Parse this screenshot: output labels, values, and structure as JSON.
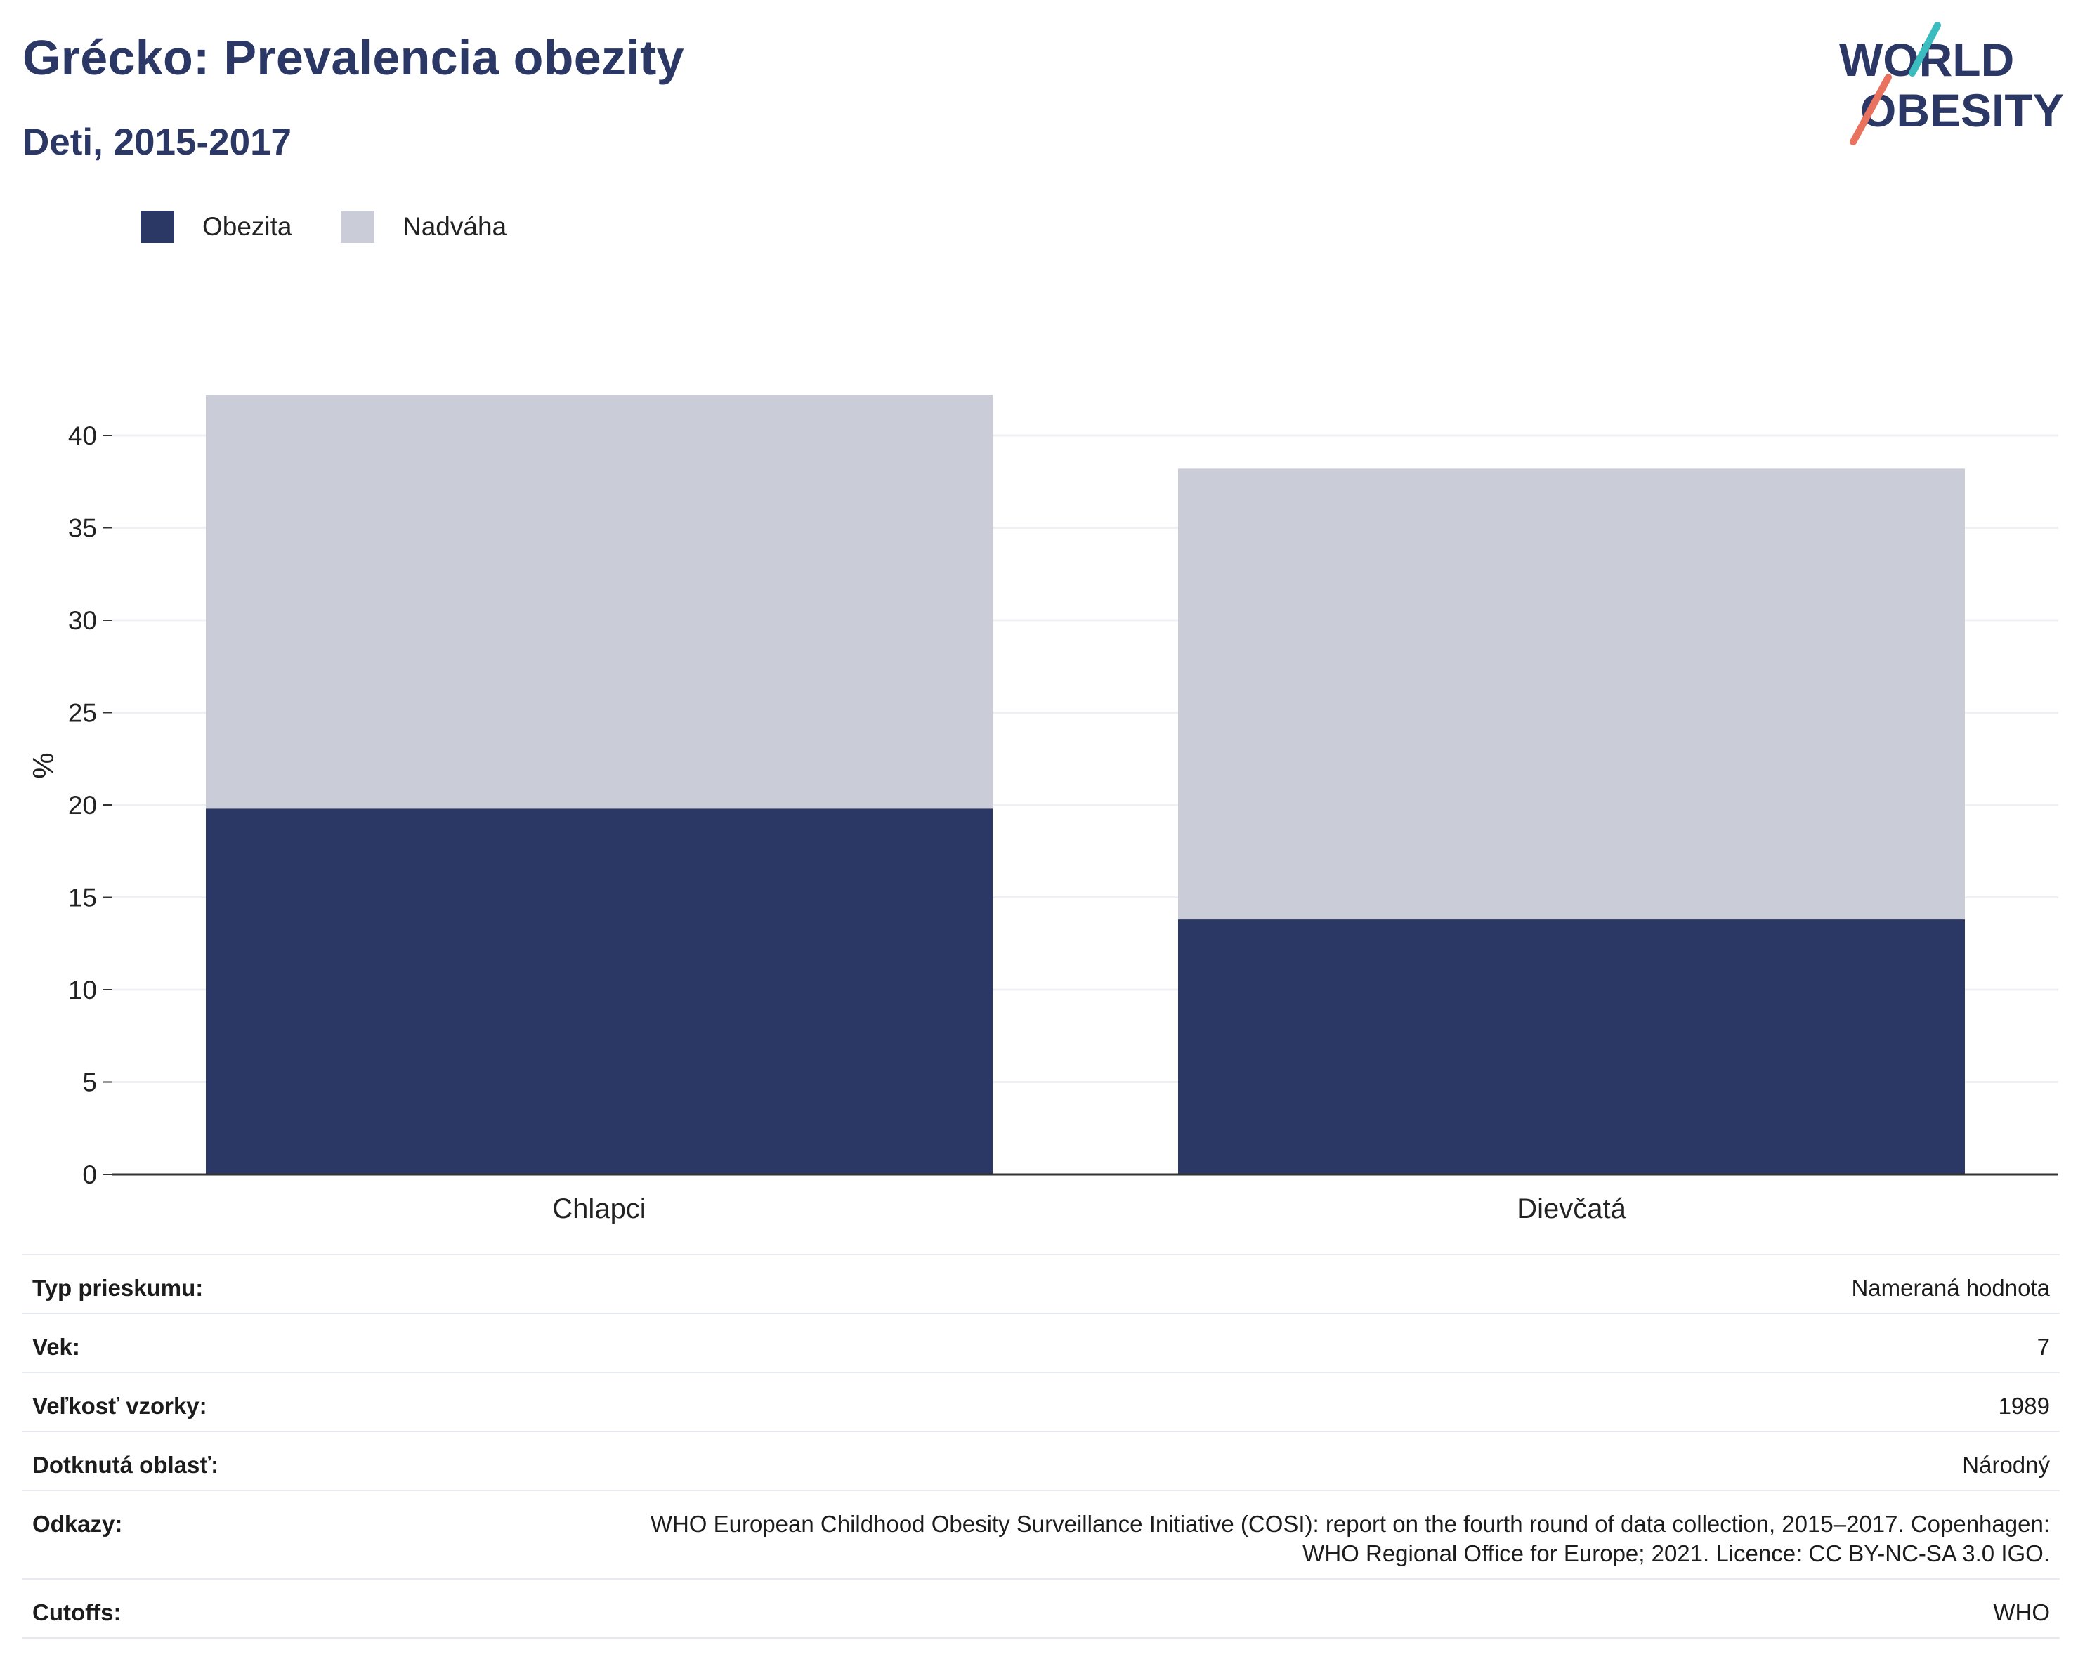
{
  "header": {
    "title": "Grécko: Prevalencia obezity",
    "subtitle": "Deti, 2015-2017"
  },
  "logo": {
    "line1": "WORLD",
    "line2": "OBESITY"
  },
  "colors": {
    "obesity": "#2b3764",
    "overweight": "#caccd8",
    "title": "#2b3764",
    "grid": "#eef0f4",
    "logo_teal": "#3bbdc0",
    "logo_coral": "#e8725d"
  },
  "chart_data": {
    "type": "bar",
    "stacked": true,
    "categories": [
      "Chlapci",
      "Dievčatá"
    ],
    "series": [
      {
        "name": "Obezita",
        "values": [
          19.8,
          13.8
        ]
      },
      {
        "name": "Nadváha",
        "values": [
          22.4,
          24.4
        ]
      }
    ],
    "title": "Grécko: Prevalencia obezity",
    "subtitle": "Deti, 2015-2017",
    "xlabel": "",
    "ylabel": "%",
    "ylim": [
      0,
      42.2
    ],
    "yticks": [
      0,
      5,
      10,
      15,
      20,
      25,
      30,
      35,
      40
    ],
    "grid": true,
    "legend_position": "top-left"
  },
  "meta": [
    {
      "label": "Typ prieskumu:",
      "value": "Nameraná hodnota"
    },
    {
      "label": "Vek:",
      "value": "7"
    },
    {
      "label": "Veľkosť vzorky:",
      "value": "1989"
    },
    {
      "label": "Dotknutá oblasť:",
      "value": "Národný"
    },
    {
      "label": "Odkazy:",
      "value": "WHO European Childhood Obesity Surveillance Initiative (COSI): report on the fourth round of data collection, 2015–2017. Copenhagen: WHO Regional Office for Europe; 2021. Licence: CC BY-NC-SA 3.0 IGO."
    },
    {
      "label": "Cutoffs:",
      "value": "WHO"
    }
  ]
}
